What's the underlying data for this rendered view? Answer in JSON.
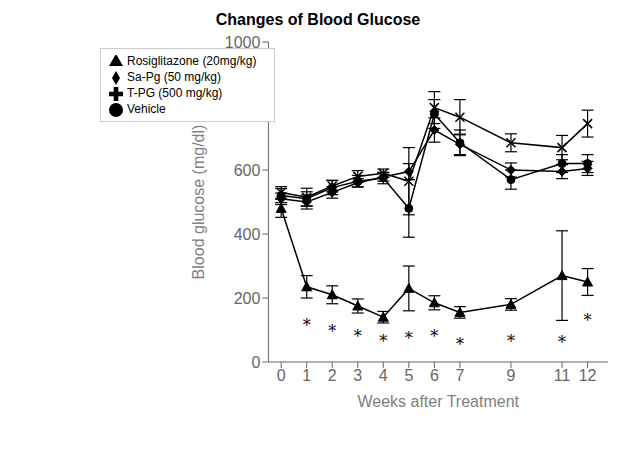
{
  "chart_data": {
    "type": "line",
    "title": "Changes of Blood Glucose",
    "x_label": "Weeks after Treatment",
    "y_label": "Blood glucose (mg/dl)",
    "x": [
      0,
      1,
      2,
      3,
      4,
      5,
      6,
      7,
      9,
      11,
      12
    ],
    "xlim": [
      -0.5,
      12.8
    ],
    "xticks": [
      0,
      1,
      2,
      3,
      4,
      5,
      6,
      7,
      9,
      11,
      12
    ],
    "ylim": [
      0,
      1000
    ],
    "yticks": [
      0,
      200,
      400,
      600,
      800,
      1000
    ],
    "grid": false,
    "legend": "upper left",
    "series": [
      {
        "name": "Vehicle",
        "color": "#000000",
        "marker": "circle",
        "values": [
          520,
          510,
          545,
          565,
          575,
          480,
          775,
          685,
          570,
          620,
          620
        ],
        "error": [
          22,
          22,
          22,
          18,
          18,
          90,
          45,
          40,
          30,
          28,
          28
        ]
      },
      {
        "name": "Rosiglitazone (20mg/kg)",
        "color": "#000000",
        "marker": "triangle",
        "values": [
          480,
          235,
          210,
          175,
          140,
          230,
          185,
          155,
          180,
          270,
          250
        ],
        "error": [
          28,
          35,
          28,
          22,
          18,
          70,
          22,
          18,
          18,
          140,
          42
        ]
      },
      {
        "name": "T-PG (500 mg/kg)",
        "color": "#000000",
        "marker": "cross",
        "values": [
          530,
          515,
          550,
          580,
          590,
          565,
          795,
          765,
          685,
          670,
          745
        ],
        "error": [
          18,
          28,
          18,
          18,
          13,
          105,
          50,
          55,
          28,
          38,
          42
        ]
      },
      {
        "name": "Sa-Pg (50 mg/kg)",
        "color": "#000000",
        "marker": "diamond",
        "values": [
          510,
          500,
          530,
          560,
          578,
          595,
          725,
          680,
          600,
          595,
          605
        ],
        "error": [
          18,
          22,
          18,
          13,
          13,
          25,
          38,
          32,
          22,
          22,
          22
        ]
      }
    ],
    "annotations": [
      {
        "x": 1,
        "y": 115,
        "text": "*"
      },
      {
        "x": 2,
        "y": 95,
        "text": "*"
      },
      {
        "x": 3,
        "y": 80,
        "text": "*"
      },
      {
        "x": 4,
        "y": 65,
        "text": "*"
      },
      {
        "x": 5,
        "y": 75,
        "text": "*"
      },
      {
        "x": 6,
        "y": 80,
        "text": "*"
      },
      {
        "x": 7,
        "y": 55,
        "text": "*"
      },
      {
        "x": 9,
        "y": 65,
        "text": "*"
      },
      {
        "x": 11,
        "y": 60,
        "text": "*"
      },
      {
        "x": 12,
        "y": 130,
        "text": "*"
      }
    ]
  }
}
